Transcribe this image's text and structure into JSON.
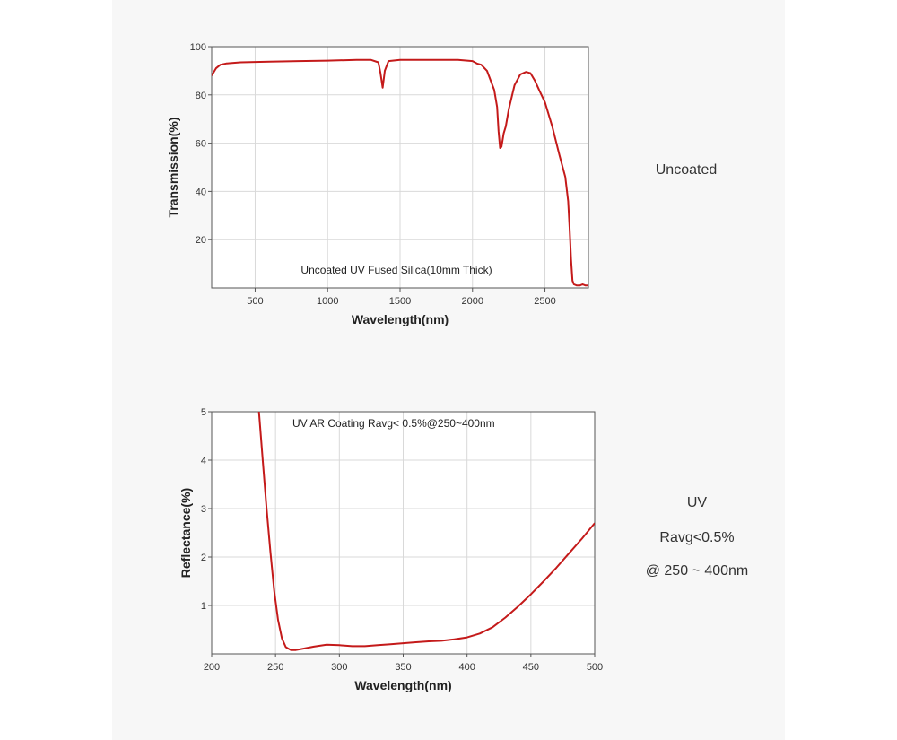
{
  "colors": {
    "curve": "#c41a1a",
    "grid": "#d9d9d9",
    "axis": "#555555",
    "panel": "#f7f7f7"
  },
  "side": {
    "uncoated": "Uncoated",
    "uv_line1": "UV",
    "uv_line2": "Ravg<0.5%",
    "uv_line3": "@ 250 ~ 400nm"
  },
  "chart_data": [
    {
      "type": "line",
      "title": "Uncoated UV Fused Silica(10mm Thick)",
      "xlabel": "Wavelength(nm)",
      "ylabel": "Transmission(%)",
      "xlim": [
        200,
        2800
      ],
      "ylim": [
        0,
        100
      ],
      "xticks": [
        500,
        1000,
        1500,
        2000,
        2500
      ],
      "yticks": [
        20,
        40,
        60,
        80,
        100
      ],
      "grid": true,
      "series": [
        {
          "name": "Transmission",
          "x": [
            200,
            230,
            260,
            300,
            400,
            600,
            800,
            1000,
            1200,
            1300,
            1350,
            1365,
            1380,
            1395,
            1420,
            1500,
            1700,
            1900,
            2000,
            2030,
            2060,
            2100,
            2150,
            2170,
            2180,
            2190,
            2200,
            2215,
            2230,
            2250,
            2290,
            2330,
            2370,
            2400,
            2430,
            2460,
            2500,
            2550,
            2600,
            2640,
            2660,
            2670,
            2680,
            2690,
            2700,
            2720,
            2740,
            2760,
            2780,
            2800
          ],
          "y": [
            88,
            91,
            92.5,
            93,
            93.5,
            93.8,
            94,
            94.2,
            94.5,
            94.5,
            93.5,
            89,
            83,
            90,
            94,
            94.5,
            94.5,
            94.5,
            94,
            93,
            92.5,
            90,
            82,
            75,
            65,
            58,
            58.5,
            64,
            67,
            74,
            84,
            88.5,
            89.5,
            89,
            86,
            82,
            77,
            67,
            55,
            46,
            36,
            25,
            12,
            3,
            1.5,
            1,
            1,
            1.5,
            1,
            1
          ]
        }
      ]
    },
    {
      "type": "line",
      "title": "UV AR Coating Ravg< 0.5%@250~400nm",
      "xlabel": "Wavelength(nm)",
      "ylabel": "Reflectance(%)",
      "xlim": [
        200,
        500
      ],
      "ylim": [
        0,
        5
      ],
      "xticks": [
        200,
        250,
        300,
        350,
        400,
        450,
        500
      ],
      "yticks": [
        1,
        2,
        3,
        4,
        5
      ],
      "grid": true,
      "series": [
        {
          "name": "Reflectance",
          "x": [
            237,
            240,
            243,
            246,
            249,
            252,
            255,
            258,
            262,
            266,
            270,
            280,
            290,
            300,
            310,
            320,
            330,
            340,
            350,
            360,
            370,
            380,
            390,
            400,
            410,
            420,
            430,
            440,
            450,
            460,
            470,
            480,
            490,
            500
          ],
          "y": [
            5.0,
            4.0,
            3.0,
            2.1,
            1.3,
            0.7,
            0.32,
            0.14,
            0.08,
            0.08,
            0.1,
            0.15,
            0.19,
            0.18,
            0.16,
            0.16,
            0.18,
            0.2,
            0.22,
            0.24,
            0.26,
            0.27,
            0.3,
            0.34,
            0.42,
            0.55,
            0.75,
            0.98,
            1.23,
            1.5,
            1.78,
            2.08,
            2.38,
            2.7
          ]
        }
      ]
    }
  ]
}
